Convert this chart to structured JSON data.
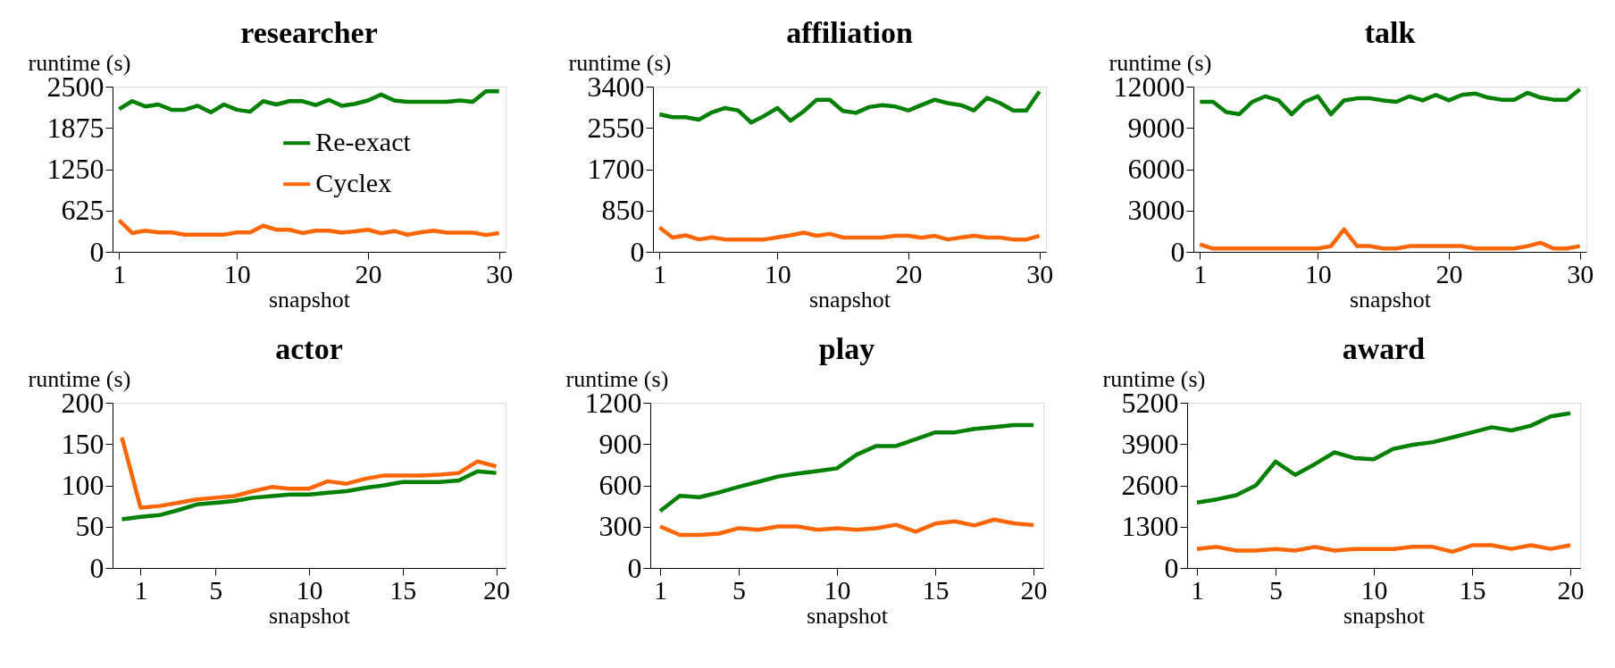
{
  "chart_data": [
    {
      "type": "line",
      "title": "researcher",
      "xlabel": "snapshot",
      "ylabel": "runtime (s)",
      "x": [
        1,
        2,
        3,
        4,
        5,
        6,
        7,
        8,
        9,
        10,
        11,
        12,
        13,
        14,
        15,
        16,
        17,
        18,
        19,
        20,
        21,
        22,
        23,
        24,
        25,
        26,
        27,
        28,
        29,
        30
      ],
      "xlim": [
        0.5,
        30.5
      ],
      "xticks": [
        1,
        10,
        20,
        30
      ],
      "ylim": [
        0,
        2500
      ],
      "yticks": [
        0,
        625,
        1250,
        1875,
        2500
      ],
      "legend": "right",
      "grid": false,
      "series": [
        {
          "name": "Re-exact",
          "color": "#008000",
          "values": [
            2160,
            2280,
            2200,
            2230,
            2150,
            2150,
            2210,
            2110,
            2230,
            2150,
            2120,
            2280,
            2230,
            2280,
            2280,
            2220,
            2300,
            2210,
            2240,
            2290,
            2380,
            2290,
            2270,
            2270,
            2270,
            2270,
            2290,
            2270,
            2430,
            2430
          ]
        },
        {
          "name": "Cyclex",
          "color": "#ff6600",
          "values": [
            480,
            285,
            320,
            295,
            295,
            260,
            260,
            260,
            260,
            295,
            295,
            395,
            335,
            335,
            285,
            320,
            320,
            290,
            310,
            335,
            280,
            315,
            260,
            295,
            320,
            290,
            290,
            290,
            255,
            285
          ]
        }
      ]
    },
    {
      "type": "line",
      "title": "affiliation",
      "xlabel": "snapshot",
      "ylabel": "runtime (s)",
      "x": [
        1,
        2,
        3,
        4,
        5,
        6,
        7,
        8,
        9,
        10,
        11,
        12,
        13,
        14,
        15,
        16,
        17,
        18,
        19,
        20,
        21,
        22,
        23,
        24,
        25,
        26,
        27,
        28,
        29,
        30
      ],
      "xlim": [
        0.5,
        30.5
      ],
      "xticks": [
        1,
        10,
        20,
        30
      ],
      "ylim": [
        0,
        3400
      ],
      "yticks": [
        0,
        850,
        1700,
        2550,
        3400
      ],
      "grid": false,
      "series": [
        {
          "color": "#008000",
          "values": [
            2830,
            2770,
            2770,
            2720,
            2870,
            2960,
            2910,
            2660,
            2800,
            2960,
            2700,
            2890,
            3130,
            3130,
            2900,
            2860,
            2980,
            3020,
            2990,
            2910,
            3020,
            3130,
            3060,
            3020,
            2910,
            3170,
            3060,
            2910,
            2910,
            3300
          ]
        },
        {
          "color": "#ff6600",
          "values": [
            500,
            295,
            340,
            255,
            300,
            255,
            255,
            255,
            255,
            300,
            340,
            395,
            330,
            370,
            295,
            295,
            295,
            295,
            330,
            330,
            290,
            330,
            255,
            295,
            330,
            295,
            295,
            255,
            255,
            330
          ]
        }
      ]
    },
    {
      "type": "line",
      "title": "talk",
      "xlabel": "snapshot",
      "ylabel": "runtime (s)",
      "x": [
        1,
        2,
        3,
        4,
        5,
        6,
        7,
        8,
        9,
        10,
        11,
        12,
        13,
        14,
        15,
        16,
        17,
        18,
        19,
        20,
        21,
        22,
        23,
        24,
        25,
        26,
        27,
        28,
        29,
        30
      ],
      "xlim": [
        0.5,
        30.5
      ],
      "xticks": [
        1,
        10,
        20,
        30
      ],
      "ylim": [
        0,
        12000
      ],
      "yticks": [
        0,
        3000,
        6000,
        9000,
        12000
      ],
      "grid": false,
      "series": [
        {
          "color": "#008000",
          "values": [
            10900,
            10900,
            10150,
            10000,
            10900,
            11300,
            11000,
            10000,
            10900,
            11300,
            10000,
            11000,
            11150,
            11150,
            11000,
            10900,
            11300,
            11000,
            11400,
            11000,
            11400,
            11500,
            11200,
            11050,
            11050,
            11550,
            11200,
            11050,
            11050,
            11800
          ]
        },
        {
          "color": "#ff6600",
          "values": [
            540,
            240,
            240,
            240,
            240,
            240,
            240,
            240,
            240,
            240,
            415,
            1630,
            415,
            415,
            240,
            240,
            415,
            415,
            415,
            415,
            415,
            240,
            240,
            240,
            240,
            415,
            660,
            240,
            240,
            415
          ]
        }
      ]
    },
    {
      "type": "line",
      "title": "actor",
      "xlabel": "snapshot",
      "ylabel": "runtime (s)",
      "x": [
        0,
        1,
        2,
        3,
        4,
        5,
        6,
        7,
        8,
        9,
        10,
        11,
        12,
        13,
        14,
        15,
        16,
        17,
        18,
        19,
        20
      ],
      "xlim": [
        -0.5,
        20.5
      ],
      "xticks": [
        1,
        5,
        10,
        15,
        20
      ],
      "ylim": [
        0,
        200
      ],
      "yticks": [
        0,
        50,
        100,
        150,
        200
      ],
      "grid": false,
      "series": [
        {
          "color": "#008000",
          "values": [
            59,
            62,
            64,
            70,
            77,
            79,
            81,
            85,
            87,
            89,
            89,
            91,
            93,
            97,
            100,
            104,
            104,
            104,
            106,
            117,
            115
          ]
        },
        {
          "color": "#ff6600",
          "values": [
            158,
            73,
            75,
            79,
            83,
            85,
            87,
            93,
            98,
            96,
            96,
            105,
            102,
            108,
            112,
            112,
            112,
            113,
            115,
            129,
            123
          ]
        }
      ]
    },
    {
      "type": "line",
      "title": "play",
      "xlabel": "snapshot",
      "ylabel": "runtime (s)",
      "x": [
        1,
        2,
        3,
        4,
        5,
        6,
        7,
        8,
        9,
        10,
        11,
        12,
        13,
        14,
        15,
        16,
        17,
        18,
        19,
        20
      ],
      "xlim": [
        0.5,
        20.5
      ],
      "xticks": [
        1,
        5,
        10,
        15,
        20
      ],
      "ylim": [
        0,
        1200
      ],
      "yticks": [
        0,
        300,
        600,
        900,
        1200
      ],
      "grid": false,
      "series": [
        {
          "color": "#008000",
          "values": [
            414,
            524,
            514,
            549,
            589,
            626,
            664,
            686,
            704,
            724,
            823,
            886,
            886,
            935,
            985,
            985,
            1010,
            1023,
            1038,
            1038
          ]
        },
        {
          "color": "#ff6600",
          "values": [
            302,
            240,
            240,
            250,
            289,
            277,
            302,
            302,
            277,
            289,
            277,
            289,
            314,
            264,
            322,
            339,
            309,
            352,
            324,
            312
          ]
        }
      ]
    },
    {
      "type": "line",
      "title": "award",
      "xlabel": "snapshot",
      "ylabel": "runtime (s)",
      "x": [
        1,
        2,
        3,
        4,
        5,
        6,
        7,
        8,
        9,
        10,
        11,
        12,
        13,
        14,
        15,
        16,
        17,
        18,
        19,
        20
      ],
      "xlim": [
        0.5,
        20.5
      ],
      "xticks": [
        1,
        5,
        10,
        15,
        20
      ],
      "ylim": [
        0,
        5200
      ],
      "yticks": [
        0,
        1300,
        2600,
        3900,
        5200
      ],
      "grid": false,
      "series": [
        {
          "color": "#008000",
          "values": [
            2060,
            2160,
            2290,
            2600,
            3350,
            2930,
            3270,
            3640,
            3460,
            3420,
            3750,
            3880,
            3960,
            4110,
            4270,
            4430,
            4330,
            4480,
            4770,
            4870
          ]
        },
        {
          "color": "#ff6600",
          "values": [
            600,
            665,
            550,
            550,
            600,
            550,
            665,
            550,
            600,
            600,
            600,
            665,
            665,
            510,
            715,
            715,
            600,
            715,
            600,
            715
          ]
        }
      ]
    }
  ]
}
